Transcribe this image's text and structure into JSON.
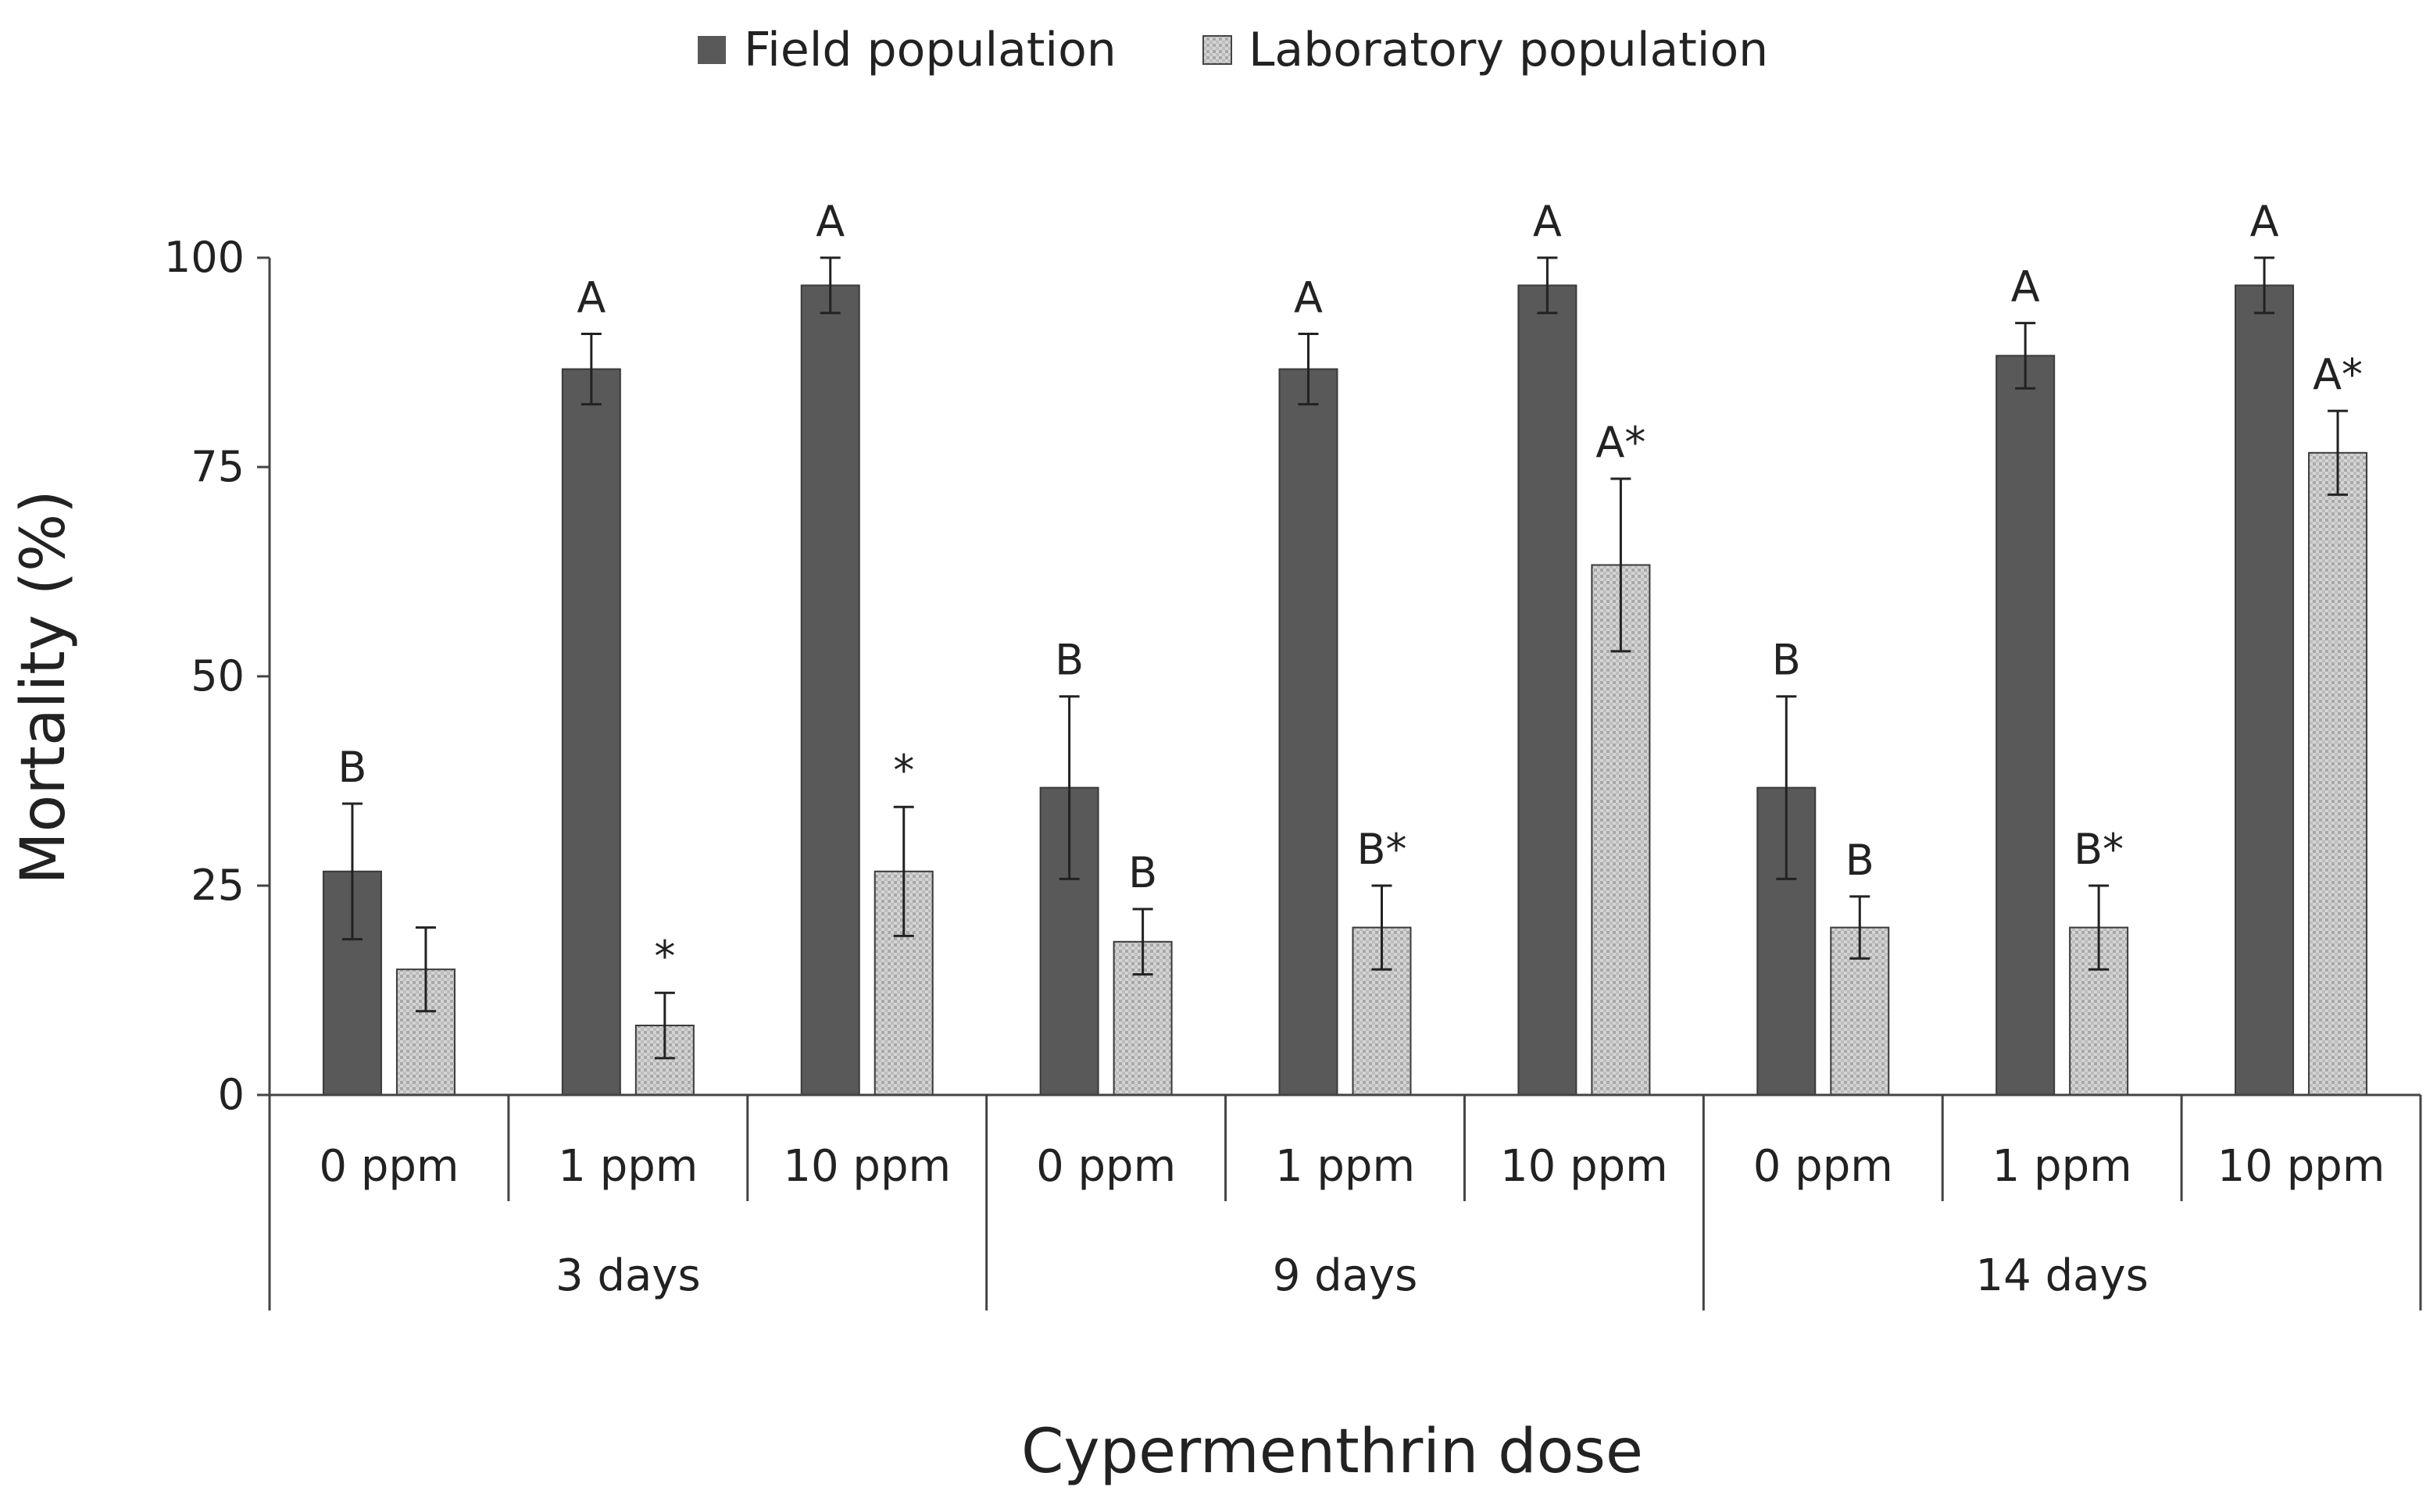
{
  "chart_data": {
    "type": "bar",
    "title": "",
    "xlabel": "Cypermenthrin dose",
    "ylabel": "Mortality (%)",
    "ylim": [
      0,
      100
    ],
    "yticks": [
      0,
      25,
      50,
      75,
      100
    ],
    "grid": false,
    "legend_position": "top-center",
    "groups": [
      "3 days",
      "9 days",
      "14 days"
    ],
    "doses": [
      "0 ppm",
      "1 ppm",
      "10 ppm"
    ],
    "categories": [
      "0 ppm",
      "1 ppm",
      "10 ppm",
      "0 ppm",
      "1 ppm",
      "10 ppm",
      "0 ppm",
      "1 ppm",
      "10 ppm"
    ],
    "series": [
      {
        "name": "Field population",
        "color": "#595959",
        "values": [
          26.7,
          86.7,
          96.7,
          36.7,
          86.7,
          96.7,
          36.7,
          88.3,
          96.7
        ],
        "errors": [
          8.1,
          4.2,
          3.3,
          10.9,
          4.2,
          3.3,
          10.9,
          3.9,
          3.3
        ],
        "labels": [
          "B",
          "A",
          "A",
          "B",
          "A",
          "A",
          "B",
          "A",
          "A"
        ]
      },
      {
        "name": "Laboratory population",
        "color": "#cfcfcf",
        "values": [
          15.0,
          8.3,
          26.7,
          18.3,
          20.0,
          63.3,
          20.0,
          20.0,
          76.7
        ],
        "errors": [
          5.0,
          3.9,
          7.7,
          3.9,
          5.0,
          10.3,
          3.7,
          5.0,
          5.0
        ],
        "labels": [
          "",
          "*",
          "*",
          "B",
          "B*",
          "A*",
          "B",
          "B*",
          "A*"
        ]
      }
    ]
  }
}
